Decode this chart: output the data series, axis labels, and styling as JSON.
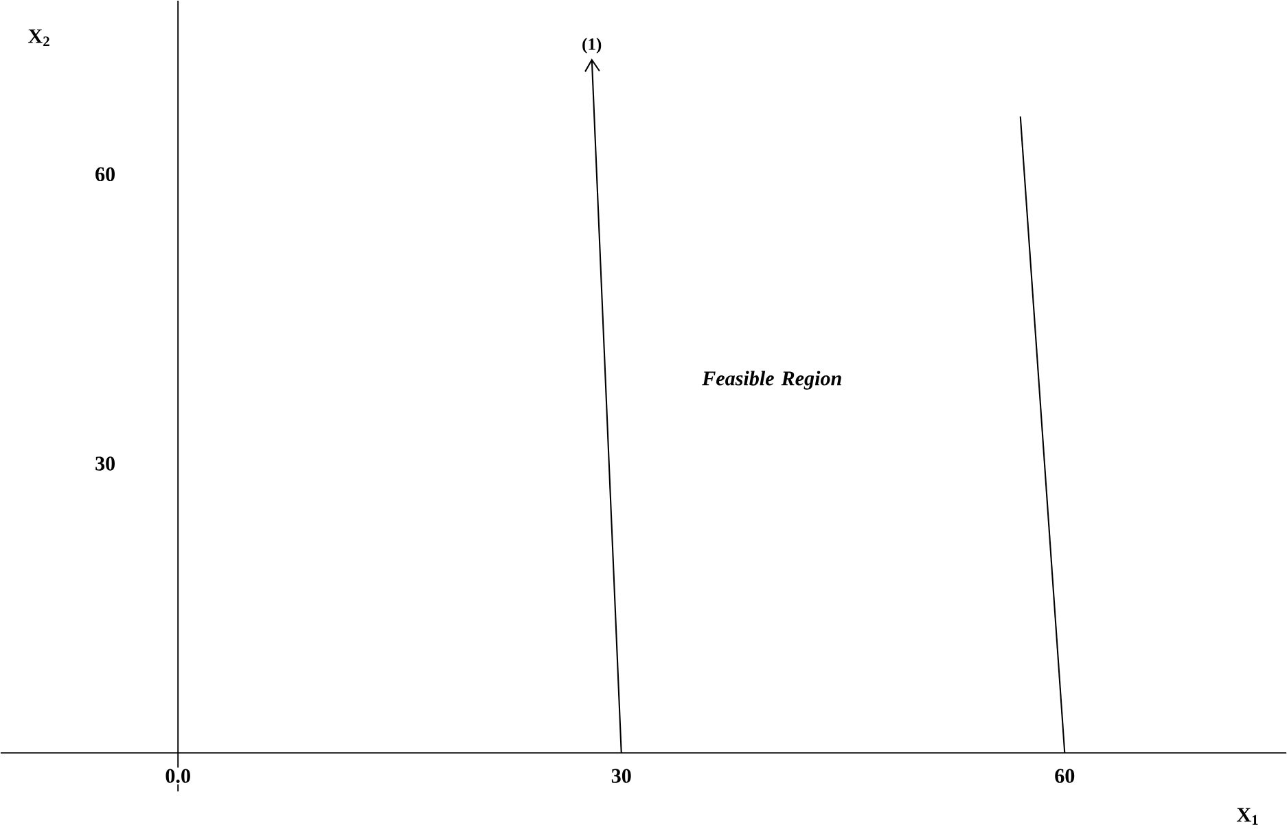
{
  "chart_data": {
    "type": "line",
    "xlabel": "X$_{1}$",
    "ylabel": "X$_{2}$",
    "xlim": [
      -12,
      75
    ],
    "ylim": [
      -4,
      78
    ],
    "xticks": [
      {
        "value": 0,
        "label": "0.0"
      },
      30,
      60
    ],
    "yticks": [
      30,
      60
    ],
    "marker": "none",
    "line_style": "solid",
    "series": [
      {
        "name": "(1)",
        "color": "#000000",
        "x": [
          30,
          28
        ],
        "values": [
          0,
          72
        ]
      },
      {
        "color": "#000000",
        "x": [
          60,
          57
        ],
        "values": [
          0,
          66
        ]
      }
    ],
    "annotations": [
      "Feasible Region"
    ]
  }
}
